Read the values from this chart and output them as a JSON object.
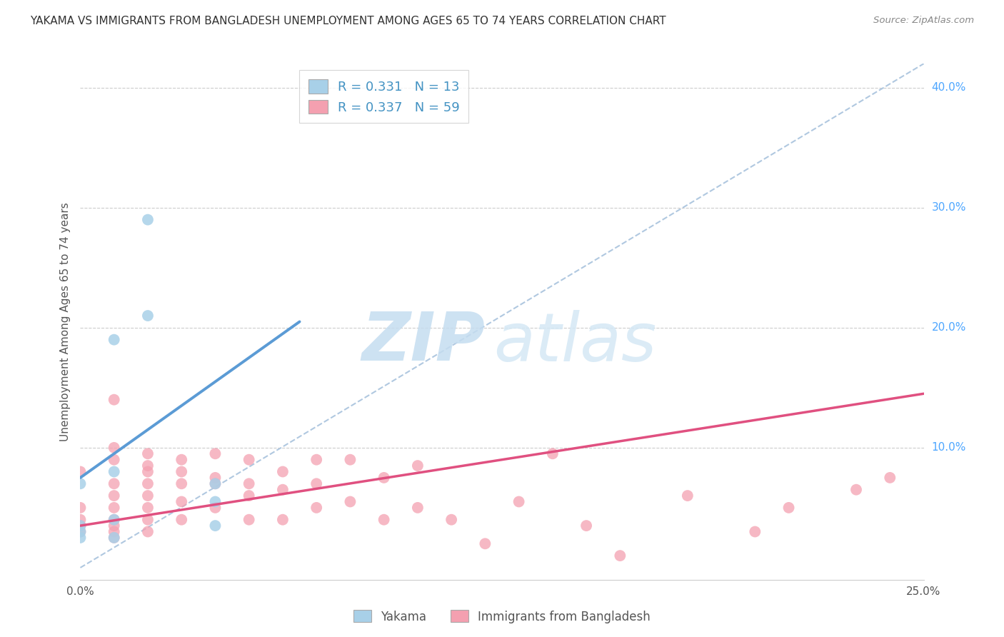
{
  "title": "YAKAMA VS IMMIGRANTS FROM BANGLADESH UNEMPLOYMENT AMONG AGES 65 TO 74 YEARS CORRELATION CHART",
  "source": "Source: ZipAtlas.com",
  "ylabel": "Unemployment Among Ages 65 to 74 years",
  "xlim": [
    0.0,
    0.25
  ],
  "ylim": [
    -0.01,
    0.42
  ],
  "xticks": [
    0.0,
    0.05,
    0.1,
    0.15,
    0.2,
    0.25
  ],
  "yticks": [
    0.0,
    0.1,
    0.2,
    0.3,
    0.4
  ],
  "xtick_labels": [
    "0.0%",
    "",
    "",
    "",
    "",
    "25.0%"
  ],
  "ytick_labels": [
    "",
    "10.0%",
    "20.0%",
    "30.0%",
    "40.0%"
  ],
  "watermark_zip": "ZIP",
  "watermark_atlas": "atlas",
  "blue_color": "#a8d0e8",
  "blue_line_color": "#5b9bd5",
  "pink_color": "#f4a0b0",
  "pink_line_color": "#e05080",
  "legend_label_yakama": "Yakama",
  "legend_label_bangladesh": "Immigrants from Bangladesh",
  "blue_R": "0.331",
  "blue_N": "13",
  "pink_R": "0.337",
  "pink_N": "59",
  "blue_scatter_x": [
    0.0,
    0.0,
    0.0,
    0.0,
    0.01,
    0.01,
    0.01,
    0.01,
    0.02,
    0.02,
    0.04,
    0.04,
    0.04
  ],
  "blue_scatter_y": [
    0.07,
    0.035,
    0.03,
    0.025,
    0.19,
    0.08,
    0.04,
    0.025,
    0.29,
    0.21,
    0.07,
    0.035,
    0.055
  ],
  "pink_scatter_x": [
    0.0,
    0.0,
    0.0,
    0.0,
    0.0,
    0.01,
    0.01,
    0.01,
    0.01,
    0.01,
    0.01,
    0.01,
    0.01,
    0.01,
    0.01,
    0.02,
    0.02,
    0.02,
    0.02,
    0.02,
    0.02,
    0.02,
    0.02,
    0.03,
    0.03,
    0.03,
    0.03,
    0.03,
    0.04,
    0.04,
    0.04,
    0.04,
    0.05,
    0.05,
    0.05,
    0.05,
    0.06,
    0.06,
    0.06,
    0.07,
    0.07,
    0.07,
    0.08,
    0.08,
    0.09,
    0.09,
    0.1,
    0.1,
    0.11,
    0.12,
    0.13,
    0.14,
    0.15,
    0.16,
    0.18,
    0.2,
    0.21,
    0.23,
    0.24
  ],
  "pink_scatter_y": [
    0.03,
    0.035,
    0.04,
    0.05,
    0.08,
    0.03,
    0.04,
    0.05,
    0.06,
    0.07,
    0.09,
    0.1,
    0.14,
    0.035,
    0.025,
    0.03,
    0.04,
    0.05,
    0.06,
    0.07,
    0.08,
    0.085,
    0.095,
    0.04,
    0.055,
    0.07,
    0.08,
    0.09,
    0.05,
    0.07,
    0.075,
    0.095,
    0.04,
    0.06,
    0.07,
    0.09,
    0.04,
    0.065,
    0.08,
    0.05,
    0.07,
    0.09,
    0.055,
    0.09,
    0.04,
    0.075,
    0.05,
    0.085,
    0.04,
    0.02,
    0.055,
    0.095,
    0.035,
    0.01,
    0.06,
    0.03,
    0.05,
    0.065,
    0.075
  ],
  "blue_trend_x": [
    0.0,
    0.065
  ],
  "blue_trend_y": [
    0.075,
    0.205
  ],
  "pink_trend_x": [
    0.0,
    0.25
  ],
  "pink_trend_y": [
    0.035,
    0.145
  ],
  "ref_line_x": [
    0.0,
    0.25
  ],
  "ref_line_y": [
    0.0,
    0.42
  ],
  "title_fontsize": 11,
  "axis_label_fontsize": 11,
  "tick_fontsize": 11,
  "legend_fontsize": 13,
  "scatter_size": 130
}
